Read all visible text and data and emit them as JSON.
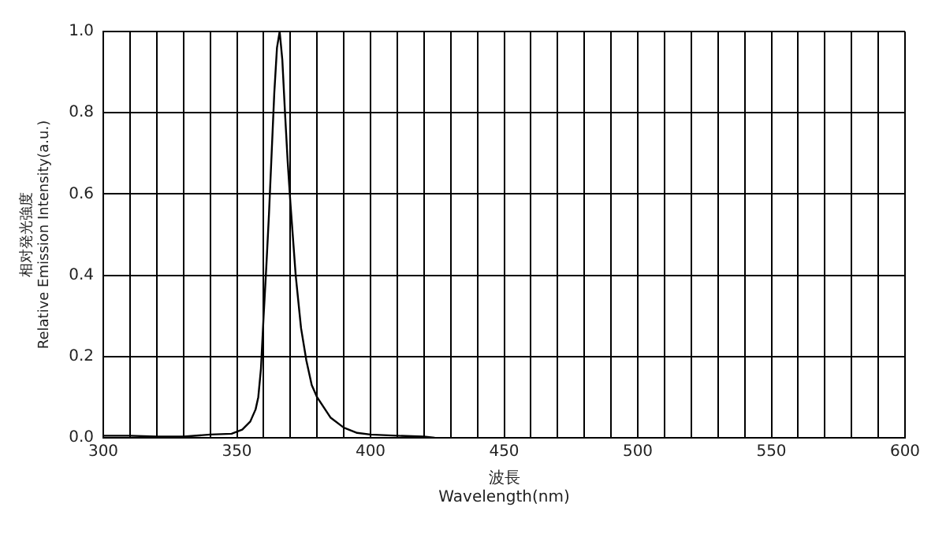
{
  "chart_data": {
    "type": "line",
    "xlabel": "波長\nWavelength(nm)",
    "ylabel": "相对発光強度\nRelative Emission Intensity(a.u.)",
    "x": [
      300,
      310,
      320,
      330,
      340,
      348,
      352,
      355,
      357,
      358,
      359,
      360,
      361,
      362,
      363,
      364,
      365,
      366,
      367,
      368,
      369,
      370,
      372,
      374,
      376,
      378,
      380,
      385,
      390,
      395,
      400,
      410,
      420,
      424
    ],
    "series": [
      {
        "color": "#000000",
        "values": [
          0.005,
          0.005,
          0.003,
          0.003,
          0.008,
          0.01,
          0.02,
          0.04,
          0.07,
          0.1,
          0.17,
          0.3,
          0.42,
          0.55,
          0.7,
          0.85,
          0.96,
          1.0,
          0.93,
          0.8,
          0.68,
          0.58,
          0.4,
          0.27,
          0.19,
          0.13,
          0.1,
          0.05,
          0.025,
          0.012,
          0.008,
          0.005,
          0.003,
          0.0
        ]
      }
    ],
    "xlim": [
      300,
      600
    ],
    "xticks": [
      300,
      {
        "value": 310,
        "label": null
      },
      {
        "value": 320,
        "label": null
      },
      {
        "value": 330,
        "label": null
      },
      {
        "value": 340,
        "label": null
      },
      350,
      {
        "value": 360,
        "label": null
      },
      {
        "value": 370,
        "label": null
      },
      {
        "value": 380,
        "label": null
      },
      {
        "value": 390,
        "label": null
      },
      400,
      {
        "value": 410,
        "label": null
      },
      {
        "value": 420,
        "label": null
      },
      {
        "value": 430,
        "label": null
      },
      {
        "value": 440,
        "label": null
      },
      450,
      {
        "value": 460,
        "label": null
      },
      {
        "value": 470,
        "label": null
      },
      {
        "value": 480,
        "label": null
      },
      {
        "value": 490,
        "label": null
      },
      500,
      {
        "value": 510,
        "label": null
      },
      {
        "value": 520,
        "label": null
      },
      {
        "value": 530,
        "label": null
      },
      {
        "value": 540,
        "label": null
      },
      550,
      {
        "value": 560,
        "label": null
      },
      {
        "value": 570,
        "label": null
      },
      {
        "value": 580,
        "label": null
      },
      {
        "value": 590,
        "label": null
      },
      600
    ],
    "ylim": [
      0,
      1
    ],
    "yticks": [
      {
        "value": 0,
        "label": "0.0"
      },
      {
        "value": 0.2,
        "label": "0.2"
      },
      {
        "value": 0.4,
        "label": "0.4"
      },
      {
        "value": 0.6,
        "label": "0.6"
      },
      {
        "value": 0.8,
        "label": "0.8"
      },
      {
        "value": 1,
        "label": "1.0"
      }
    ],
    "grid": true,
    "legend": false,
    "marker": "none",
    "line_style": "solid"
  }
}
